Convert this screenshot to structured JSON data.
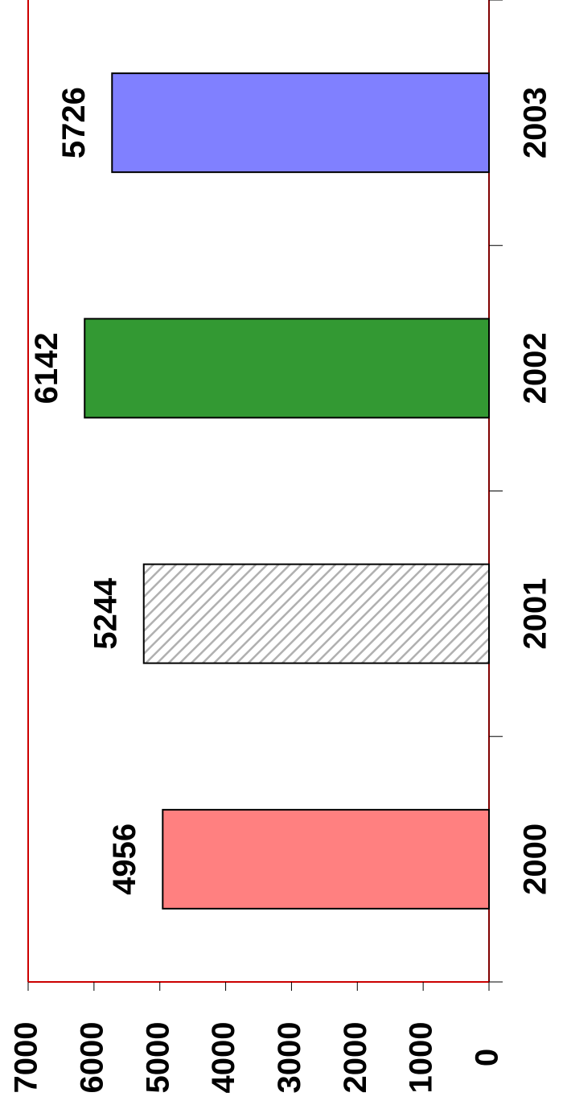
{
  "chart_data": {
    "type": "bar",
    "orientation": "rotated",
    "categories": [
      "2000",
      "2001",
      "2002",
      "2003"
    ],
    "values": [
      4956,
      5244,
      6142,
      5726
    ],
    "colors": [
      "#ff8080",
      "#ffffff",
      "#339933",
      "#8080ff"
    ],
    "patterns": [
      null,
      "hatch",
      null,
      null
    ],
    "ylim": [
      0,
      7000
    ],
    "yticks": [
      0,
      1000,
      2000,
      3000,
      4000,
      5000,
      6000,
      7000
    ]
  }
}
